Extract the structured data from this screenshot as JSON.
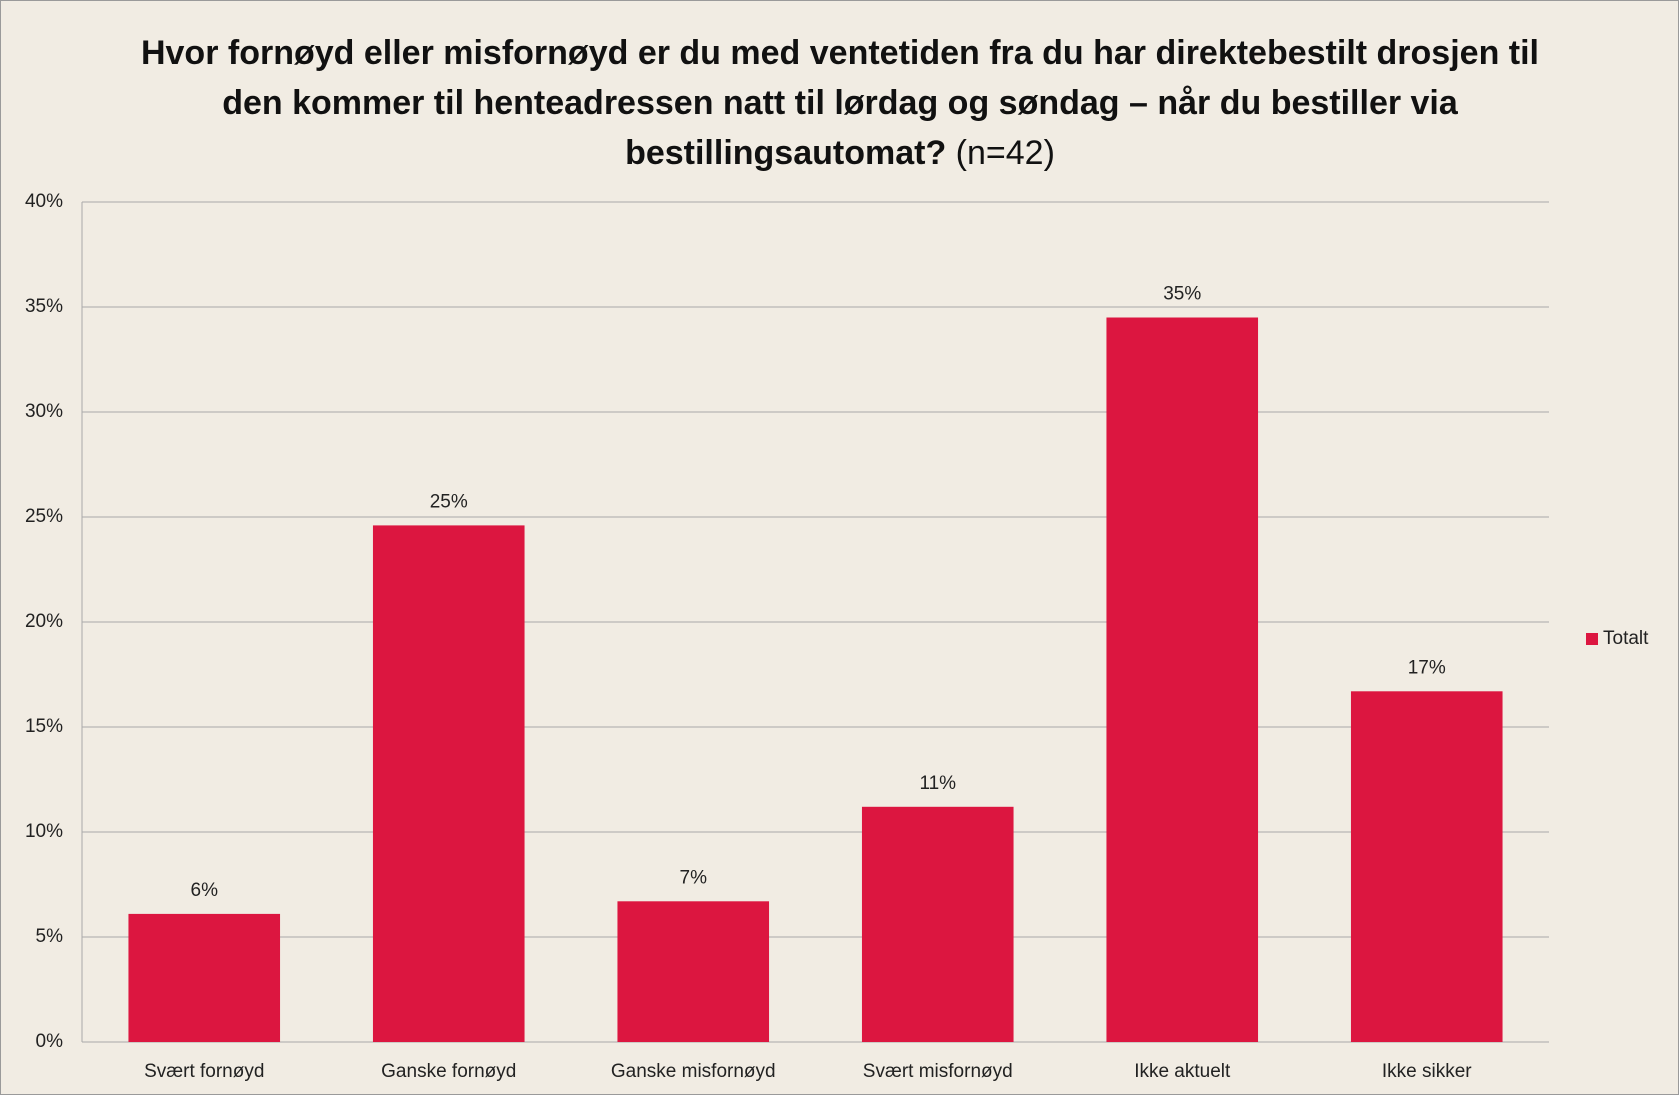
{
  "chart_data": {
    "type": "bar",
    "title": "Hvor fornøyd eller misfornøyd er du med ventetiden fra du har direktebestilt drosjen til den kommer til henteadressen natt til lørdag og søndag – når du bestiller via bestillingsautomat?",
    "title_note": "(n=42)",
    "categories": [
      "Svært fornøyd",
      "Ganske fornøyd",
      "Ganske misfornøyd",
      "Svært misfornøyd",
      "Ikke aktuelt",
      "Ikke sikker"
    ],
    "series": [
      {
        "name": "Totalt",
        "color": "#dc1640",
        "values": [
          6.1,
          24.6,
          6.7,
          11.2,
          34.5,
          16.7
        ],
        "value_labels": [
          "6%",
          "25%",
          "7%",
          "11%",
          "35%",
          "17%"
        ]
      }
    ],
    "ylim": [
      0,
      40
    ],
    "yticks": [
      {
        "value": 0,
        "label": "0%"
      },
      {
        "value": 5,
        "label": "5%"
      },
      {
        "value": 10,
        "label": "10%"
      },
      {
        "value": 15,
        "label": "15%"
      },
      {
        "value": 20,
        "label": "20%"
      },
      {
        "value": 25,
        "label": "25%"
      },
      {
        "value": 30,
        "label": "30%"
      },
      {
        "value": 35,
        "label": "35%"
      },
      {
        "value": 40,
        "label": "40%"
      }
    ],
    "grid": true,
    "legend": "right"
  }
}
